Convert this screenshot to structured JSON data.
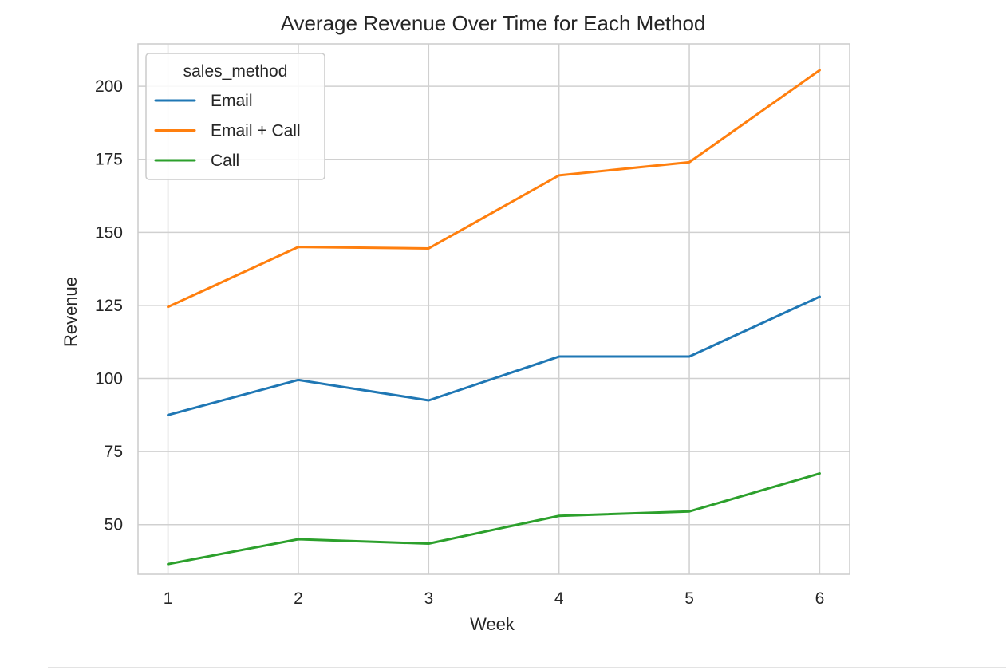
{
  "chart_data": {
    "type": "line",
    "title": "Average Revenue Over Time for Each Method",
    "xlabel": "Week",
    "ylabel": "Revenue",
    "x": [
      1,
      2,
      3,
      4,
      5,
      6
    ],
    "xlim": [
      0.77,
      6.23
    ],
    "ylim": [
      33,
      214.5
    ],
    "xticks": [
      1,
      2,
      3,
      4,
      5,
      6
    ],
    "yticks": [
      50,
      75,
      100,
      125,
      150,
      175,
      200
    ],
    "grid": true,
    "legend": {
      "title": "sales_method",
      "placement": "top-left"
    },
    "series": [
      {
        "name": "Email",
        "color": "#1f77b4",
        "values": [
          87.5,
          99.5,
          92.5,
          107.5,
          107.5,
          128.0
        ]
      },
      {
        "name": "Email + Call",
        "color": "#ff7f0e",
        "values": [
          124.5,
          145.0,
          144.5,
          169.5,
          174.0,
          205.5
        ]
      },
      {
        "name": "Call",
        "color": "#2ca02c",
        "values": [
          36.5,
          45.0,
          43.5,
          53.0,
          54.5,
          67.5
        ]
      }
    ]
  }
}
